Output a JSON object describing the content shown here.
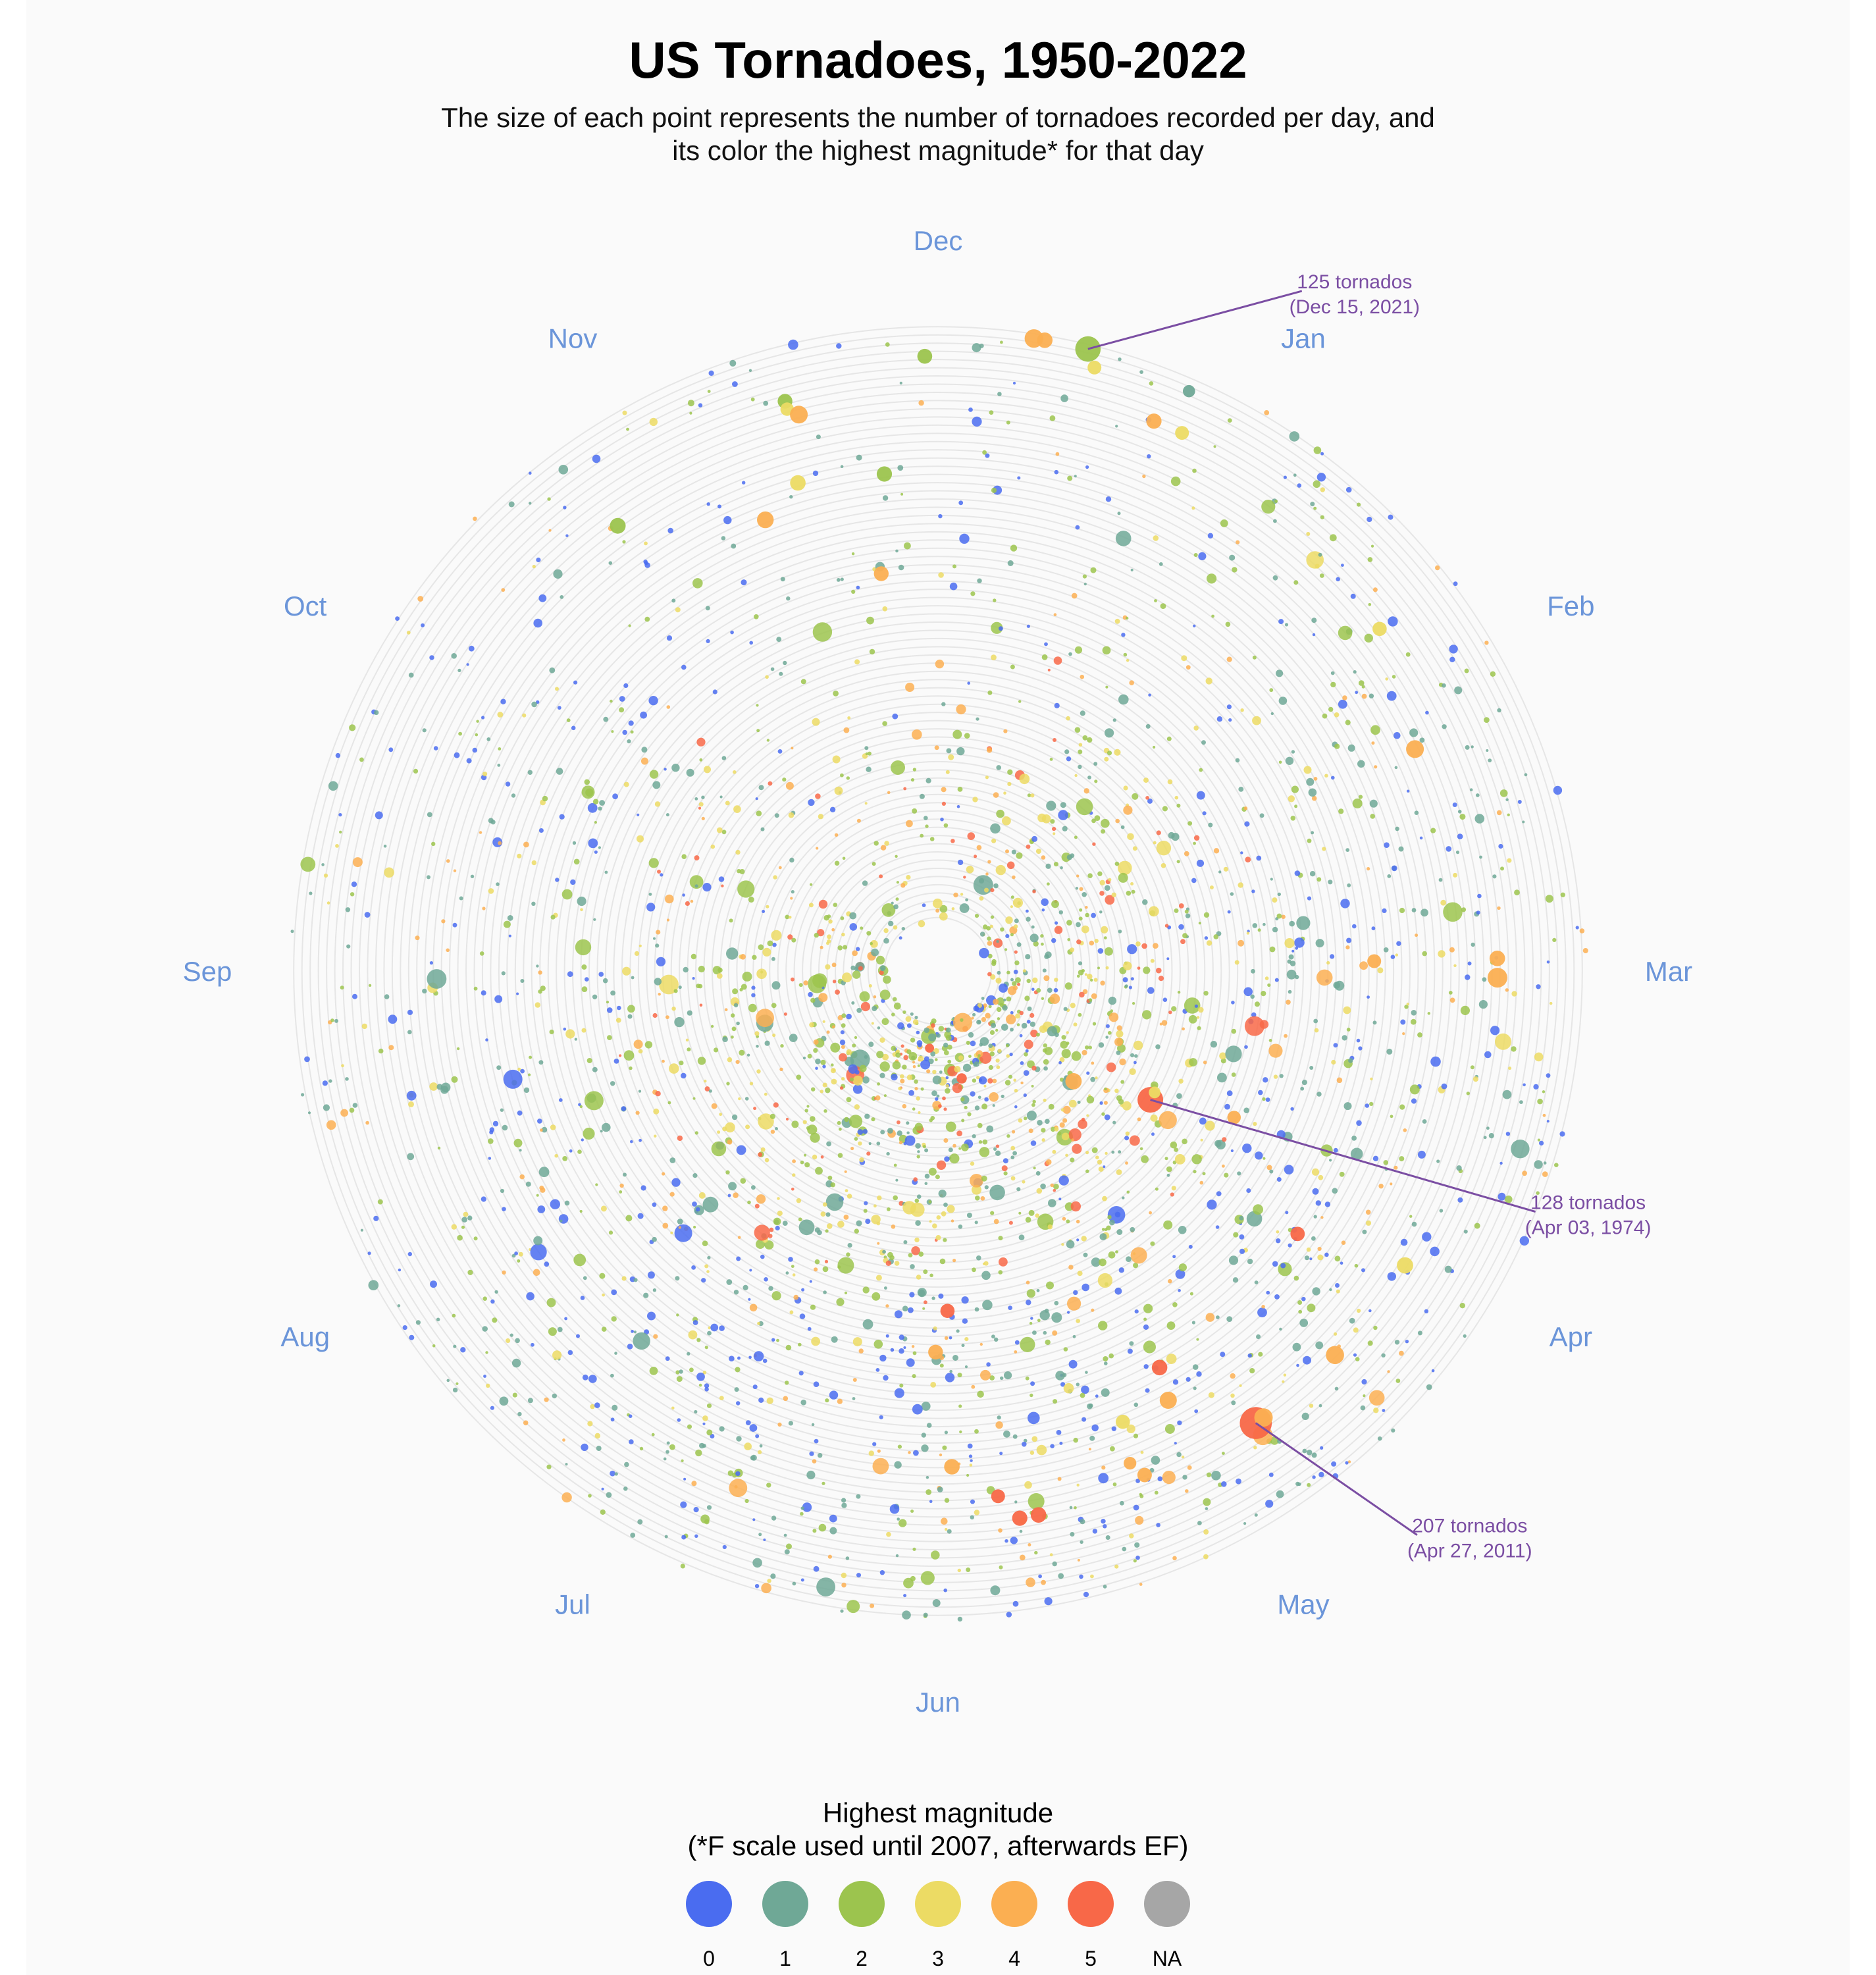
{
  "chart_data": {
    "type": "scatter",
    "coordinate_system": "polar-spiral",
    "title": "US Tornadoes, 1950-2022",
    "subtitle_lines": [
      "The size of each point represents the number of tornadoes recorded per day, and",
      "its color the highest magnitude* for that day"
    ],
    "angular_axis": {
      "variable": "day of year",
      "direction": "clockwise",
      "start_at_top": "Dec",
      "tick_labels": [
        "Dec",
        "Jan",
        "Feb",
        "Mar",
        "Apr",
        "May",
        "Jun",
        "Jul",
        "Aug",
        "Sep",
        "Oct",
        "Nov"
      ]
    },
    "radial_axis": {
      "variable": "year",
      "range": [
        1950,
        2022
      ],
      "direction": "inner to outer",
      "grid": true
    },
    "size_encoding": "number of tornadoes per day",
    "color_encoding": "highest magnitude",
    "legend": {
      "title_lines": [
        "Highest magnitude",
        "(*F scale used until 2007, afterwards EF)"
      ],
      "position": "bottom-center",
      "items": [
        {
          "label": "0",
          "color": "#4a6cf0"
        },
        {
          "label": "1",
          "color": "#6fa896"
        },
        {
          "label": "2",
          "color": "#9cc44e"
        },
        {
          "label": "3",
          "color": "#ecdb64"
        },
        {
          "label": "4",
          "color": "#fbaf52"
        },
        {
          "label": "5",
          "color": "#f86848"
        },
        {
          "label": "NA",
          "color": "#a6a6a6"
        }
      ]
    },
    "annotations": [
      {
        "name": "dec-2021",
        "lines": [
          "125 tornados",
          "(Dec 15, 2021)"
        ],
        "date": "2021-12-15",
        "count": 125,
        "magnitude": "2"
      },
      {
        "name": "apr-1974",
        "lines": [
          "128 tornados",
          "(Apr 03, 1974)"
        ],
        "date": "1974-04-03",
        "count": 128,
        "magnitude": "5"
      },
      {
        "name": "apr-2011",
        "lines": [
          "207 tornados",
          "(Apr 27, 2011)"
        ],
        "date": "2011-04-27",
        "count": 207,
        "magnitude": "5"
      }
    ],
    "points": [
      {
        "date": "2021-12-15",
        "count": 125,
        "magnitude": "2"
      },
      {
        "date": "1974-04-03",
        "count": 128,
        "magnitude": "5"
      },
      {
        "date": "2011-04-27",
        "count": 207,
        "magnitude": "5"
      },
      {
        "date": "2021-12-10",
        "count": 61,
        "magnitude": "4"
      },
      {
        "date": "2021-12-11",
        "count": 40,
        "magnitude": "4"
      },
      {
        "date": "2020-12-24",
        "count": 22,
        "magnitude": "1"
      },
      {
        "date": "2019-12-16",
        "count": 30,
        "magnitude": "3"
      },
      {
        "date": "2018-11-30",
        "count": 36,
        "magnitude": "2"
      },
      {
        "date": "2015-12-23",
        "count": 38,
        "magnitude": "4"
      },
      {
        "date": "2015-12-26",
        "count": 30,
        "magnitude": "3"
      },
      {
        "date": "2015-11-16",
        "count": 35,
        "magnitude": "2"
      },
      {
        "date": "2014-11-16",
        "count": 28,
        "magnitude": "3"
      },
      {
        "date": "2013-11-17",
        "count": 55,
        "magnitude": "4"
      },
      {
        "date": "2012-01-23",
        "count": 32,
        "magnitude": "3"
      },
      {
        "date": "2012-02-29",
        "count": 40,
        "magnitude": "4"
      },
      {
        "date": "2012-03-02",
        "count": 70,
        "magnitude": "4"
      },
      {
        "date": "2011-04-04",
        "count": 45,
        "magnitude": "3"
      },
      {
        "date": "2011-04-16",
        "count": 58,
        "magnitude": "4"
      },
      {
        "date": "2011-04-26",
        "count": 60,
        "magnitude": "4"
      },
      {
        "date": "2011-05-22",
        "count": 40,
        "magnitude": "5"
      },
      {
        "date": "2011-05-24",
        "count": 38,
        "magnitude": "5"
      },
      {
        "date": "2010-10-26",
        "count": 42,
        "magnitude": "2"
      },
      {
        "date": "2010-05-10",
        "count": 34,
        "magnitude": "4"
      },
      {
        "date": "2008-02-05",
        "count": 55,
        "magnitude": "4"
      },
      {
        "date": "2008-05-10",
        "count": 24,
        "magnitude": "4"
      },
      {
        "date": "2008-05-25",
        "count": 30,
        "magnitude": "5"
      },
      {
        "date": "2005-11-15",
        "count": 40,
        "magnitude": "3"
      },
      {
        "date": "2004-11-24",
        "count": 38,
        "magnitude": "2"
      },
      {
        "date": "2004-05-30",
        "count": 40,
        "magnitude": "4"
      },
      {
        "date": "2003-05-04",
        "count": 50,
        "magnitude": "4"
      },
      {
        "date": "2003-05-10",
        "count": 32,
        "magnitude": "3"
      },
      {
        "date": "2002-11-10",
        "count": 48,
        "magnitude": "4"
      },
      {
        "date": "1999-05-03",
        "count": 40,
        "magnitude": "5"
      },
      {
        "date": "1998-04-08",
        "count": 33,
        "magnitude": "5"
      },
      {
        "date": "1997-03-01",
        "count": 30,
        "magnitude": "4"
      },
      {
        "date": "1992-11-22",
        "count": 35,
        "magnitude": "4"
      },
      {
        "date": "1990-06-02",
        "count": 35,
        "magnitude": "4"
      },
      {
        "date": "1985-05-31",
        "count": 32,
        "magnitude": "5"
      },
      {
        "date": "1984-03-28",
        "count": 28,
        "magnitude": "4"
      },
      {
        "date": "1974-04-01",
        "count": 20,
        "magnitude": "3"
      },
      {
        "date": "1965-04-11",
        "count": 45,
        "magnitude": "4"
      },
      {
        "date": "1957-05-20",
        "count": 14,
        "magnitude": "5"
      },
      {
        "date": "1953-06-08",
        "count": 10,
        "magnitude": "5"
      }
    ]
  }
}
